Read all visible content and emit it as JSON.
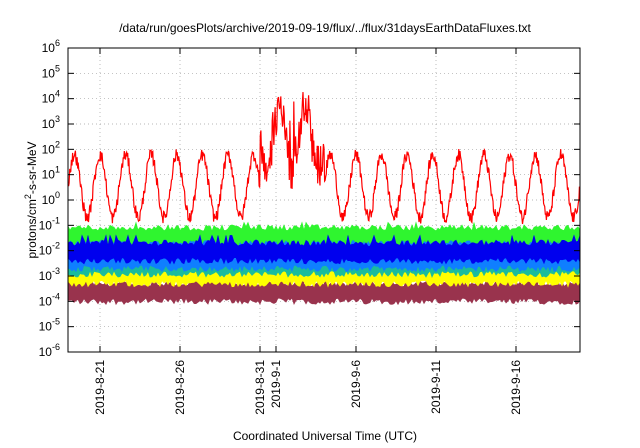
{
  "chart_data": {
    "type": "line",
    "title": "/data/run/goesPlots/archive/2019-09-19/flux/../flux/31daysEarthDataFluxes.txt",
    "xlabel": "Coordinated Universal Time (UTC)",
    "ylabel_prefix": "protons/cm",
    "ylabel_sup": "2",
    "ylabel_suffix": "-s-sr-MeV",
    "yscale": "log",
    "ylim": [
      1e-06,
      1000000.0
    ],
    "y_ticks": [
      {
        "base": "10",
        "exp": "-6",
        "v": -6
      },
      {
        "base": "10",
        "exp": "-5",
        "v": -5
      },
      {
        "base": "10",
        "exp": "-4",
        "v": -4
      },
      {
        "base": "10",
        "exp": "-3",
        "v": -3
      },
      {
        "base": "10",
        "exp": "-2",
        "v": -2
      },
      {
        "base": "10",
        "exp": "-1",
        "v": -1
      },
      {
        "base": "10",
        "exp": "0",
        "v": 0
      },
      {
        "base": "10",
        "exp": "1",
        "v": 1
      },
      {
        "base": "10",
        "exp": "2",
        "v": 2
      },
      {
        "base": "10",
        "exp": "3",
        "v": 3
      },
      {
        "base": "10",
        "exp": "4",
        "v": 4
      },
      {
        "base": "10",
        "exp": "5",
        "v": 5
      },
      {
        "base": "10",
        "exp": "6",
        "v": 6
      }
    ],
    "x_start": "2019-08-19",
    "x_end": "2019-09-20",
    "x_ticks": [
      {
        "label": "2019-8-21",
        "date": "2019-08-21"
      },
      {
        "label": "2019-8-26",
        "date": "2019-08-26"
      },
      {
        "label": "2019-8-31",
        "date": "2019-08-31"
      },
      {
        "label": "2019-9-1",
        "date": "2019-09-01"
      },
      {
        "label": "2019-9-6",
        "date": "2019-09-06"
      },
      {
        "label": "2019-9-11",
        "date": "2019-09-11"
      },
      {
        "label": "2019-9-16",
        "date": "2019-09-16"
      }
    ],
    "grid": true,
    "series": [
      {
        "color": "#99334d",
        "kind": "band",
        "low": 0.0001,
        "high": 0.0005,
        "spike_high": 0.002
      },
      {
        "color": "#ffff00",
        "kind": "band",
        "low": 0.0005,
        "high": 0.003,
        "spike_high": 0.005
      },
      {
        "color": "#1abc9c",
        "kind": "band",
        "low": 0.0012,
        "high": 0.005,
        "spike_high": 0.008
      },
      {
        "color": "#0f7fff",
        "kind": "band",
        "low": 0.002,
        "high": 0.03,
        "spike_high": 0.06
      },
      {
        "color": "#2ff52f",
        "kind": "band",
        "low": 0.02,
        "high": 0.08,
        "spike_high": 0.13
      },
      {
        "color": "#0000ee",
        "kind": "band",
        "low": 0.004,
        "high": 0.02,
        "spike_high": 0.04
      },
      {
        "color": "#ff0000",
        "kind": "line",
        "cycle_days": 1.6,
        "min": 0.2,
        "max": 60,
        "event_start": "2019-08-31",
        "event_end": "2019-09-02",
        "event_peak": 20000.0
      }
    ]
  }
}
